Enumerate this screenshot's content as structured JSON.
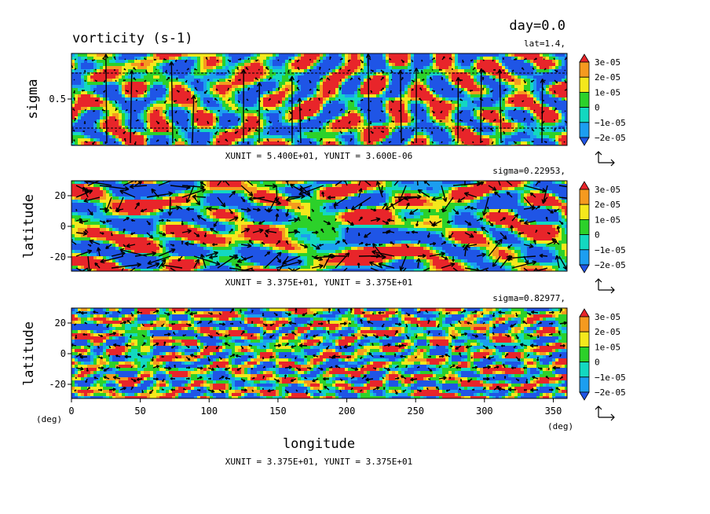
{
  "header": {
    "day_label": "day=0.0",
    "title": "vorticity (s-1)"
  },
  "panels": [
    {
      "id": "sigma-section",
      "info_label": "lat=1.4,",
      "ylabel": "sigma",
      "yticks": [
        "0.5"
      ],
      "unit_label": "XUNIT = 5.400E+01, YUNIT = 3.600E-06"
    },
    {
      "id": "upper-level",
      "info_label": "sigma=0.22953,",
      "ylabel": "latitude",
      "yticks": [
        "20",
        "0",
        "-20"
      ],
      "unit_label": "XUNIT = 3.375E+01, YUNIT = 3.375E+01"
    },
    {
      "id": "lower-level",
      "info_label": "sigma=0.82977,",
      "ylabel": "latitude",
      "yticks": [
        "20",
        "0",
        "-20"
      ],
      "unit_label": "XUNIT = 3.375E+01, YUNIT = 3.375E+01"
    }
  ],
  "xaxis": {
    "label": "longitude",
    "ticks": [
      "0",
      "50",
      "100",
      "150",
      "200",
      "250",
      "300",
      "350"
    ],
    "unit_left": "(deg)",
    "unit_right": "(deg)"
  },
  "colorbar": {
    "labels": [
      "3e-05",
      "2e-05",
      "1e-05",
      "0",
      "−1e-05",
      "−2e-05"
    ],
    "colors": [
      "#e8252a",
      "#f59a1f",
      "#f4e81c",
      "#2cd12a",
      "#13d8c0",
      "#1c9ef0",
      "#1f55e6"
    ]
  },
  "chart_data": {
    "type": "heatmap",
    "title": "vorticity (s-1)",
    "subtitle": "day=0.0",
    "xlabel": "longitude",
    "xunit": "(deg)",
    "xlim": [
      0,
      360
    ],
    "levels": [
      -2e-05,
      -1e-05,
      0,
      1e-05,
      2e-05,
      3e-05
    ],
    "panels": [
      {
        "section": "lat=1.4,",
        "ylabel": "sigma",
        "ylim": [
          0,
          1
        ]
      },
      {
        "section": "sigma=0.22953,",
        "ylabel": "latitude",
        "ylim": [
          -30,
          30
        ]
      },
      {
        "section": "sigma=0.82977,",
        "ylabel": "latitude",
        "ylim": [
          -30,
          30
        ]
      }
    ]
  }
}
